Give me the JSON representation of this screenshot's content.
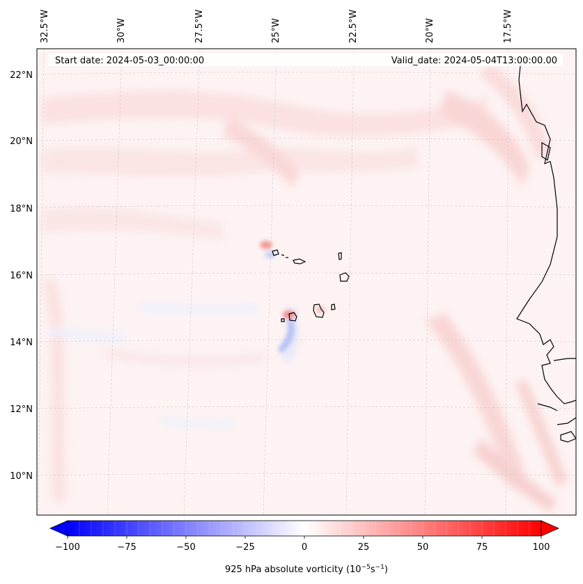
{
  "header": {
    "start_date": "Start date: 2024-05-03_00:00:00",
    "valid_date": "Valid_date: 2024-05-04T13:00:00.00"
  },
  "map": {
    "longitude_labels": [
      "32.5°W",
      "30°W",
      "27.5°W",
      "25°W",
      "22.5°W",
      "20°W",
      "17.5°W"
    ],
    "latitude_labels": [
      "22°N",
      "20°N",
      "18°N",
      "16°N",
      "14°N",
      "12°N",
      "10°N"
    ],
    "gridlines": "dashed light gray",
    "features": [
      "Cape Verde Islands",
      "West African coastline"
    ]
  },
  "colorbar": {
    "label_prefix": "925 hPa absolute vorticity (10",
    "label_exp1": "−5",
    "label_mid": "s",
    "label_exp2": "−1",
    "label_suffix": ")",
    "tick_labels": [
      "−100",
      "−75",
      "−50",
      "−25",
      "0",
      "25",
      "50",
      "75",
      "100"
    ],
    "min_color": "#0000ff",
    "mid_color": "#ffffff",
    "max_color": "#ff0000",
    "range": [
      -100,
      100
    ]
  },
  "colors": {
    "background_tint": "#fdf3f3",
    "positive_band": "#fbdede",
    "negative_patch": "#e2e6fb",
    "coast": "#000000"
  }
}
